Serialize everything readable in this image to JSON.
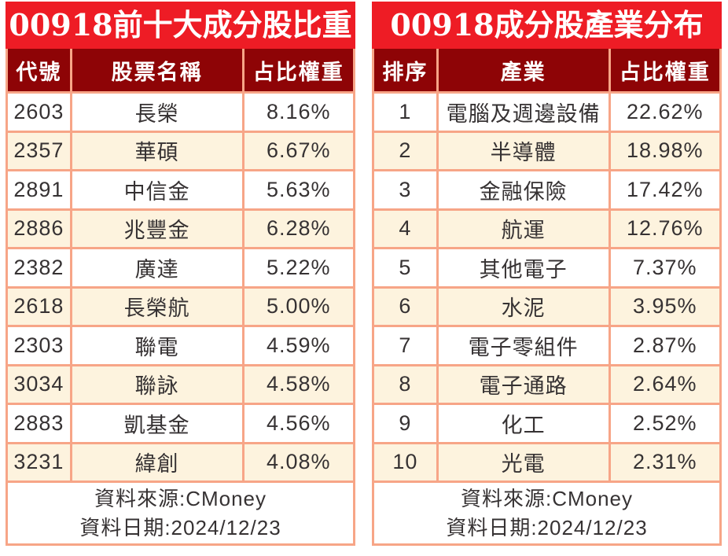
{
  "colors": {
    "title_bg": "#EE1C25",
    "title_text": "#FFFFFF",
    "header_bg": "#8E0406",
    "header_text": "#FFFFFF",
    "grid_border": "#F7A587",
    "row_white": "#FFFFFF",
    "row_cream": "#FDF3DE",
    "body_text": "#363233"
  },
  "chart_data": [
    {
      "type": "table",
      "title": "00918前十大成分股比重",
      "columns": [
        "代號",
        "股票名稱",
        "占比權重"
      ],
      "rows": [
        [
          "2603",
          "長榮",
          "8.16%"
        ],
        [
          "2357",
          "華碩",
          "6.67%"
        ],
        [
          "2891",
          "中信金",
          "5.63%"
        ],
        [
          "2886",
          "兆豐金",
          "6.28%"
        ],
        [
          "2382",
          "廣達",
          "5.22%"
        ],
        [
          "2618",
          "長榮航",
          "5.00%"
        ],
        [
          "2303",
          "聯電",
          "4.59%"
        ],
        [
          "3034",
          "聯詠",
          "4.58%"
        ],
        [
          "2883",
          "凱基金",
          "4.56%"
        ],
        [
          "3231",
          "緯創",
          "4.08%"
        ]
      ],
      "weights_percent": [
        8.16,
        6.67,
        5.63,
        6.28,
        5.22,
        5.0,
        4.59,
        4.58,
        4.56,
        4.08
      ],
      "footer_lines": [
        "資料來源:CMoney",
        "資料日期:2024/12/23"
      ]
    },
    {
      "type": "table",
      "title": "00918成分股產業分布",
      "columns": [
        "排序",
        "產業",
        "占比權重"
      ],
      "rows": [
        [
          "1",
          "電腦及週邊設備",
          "22.62%"
        ],
        [
          "2",
          "半導體",
          "18.98%"
        ],
        [
          "3",
          "金融保險",
          "17.42%"
        ],
        [
          "4",
          "航運",
          "12.76%"
        ],
        [
          "5",
          "其他電子",
          "7.37%"
        ],
        [
          "6",
          "水泥",
          "3.95%"
        ],
        [
          "7",
          "電子零組件",
          "2.87%"
        ],
        [
          "8",
          "電子通路",
          "2.64%"
        ],
        [
          "9",
          "化工",
          "2.52%"
        ],
        [
          "10",
          "光電",
          "2.31%"
        ]
      ],
      "weights_percent": [
        22.62,
        18.98,
        17.42,
        12.76,
        7.37,
        3.95,
        2.87,
        2.64,
        2.52,
        2.31
      ],
      "footer_lines": [
        "資料來源:CMoney",
        "資料日期:2024/12/23"
      ]
    }
  ]
}
